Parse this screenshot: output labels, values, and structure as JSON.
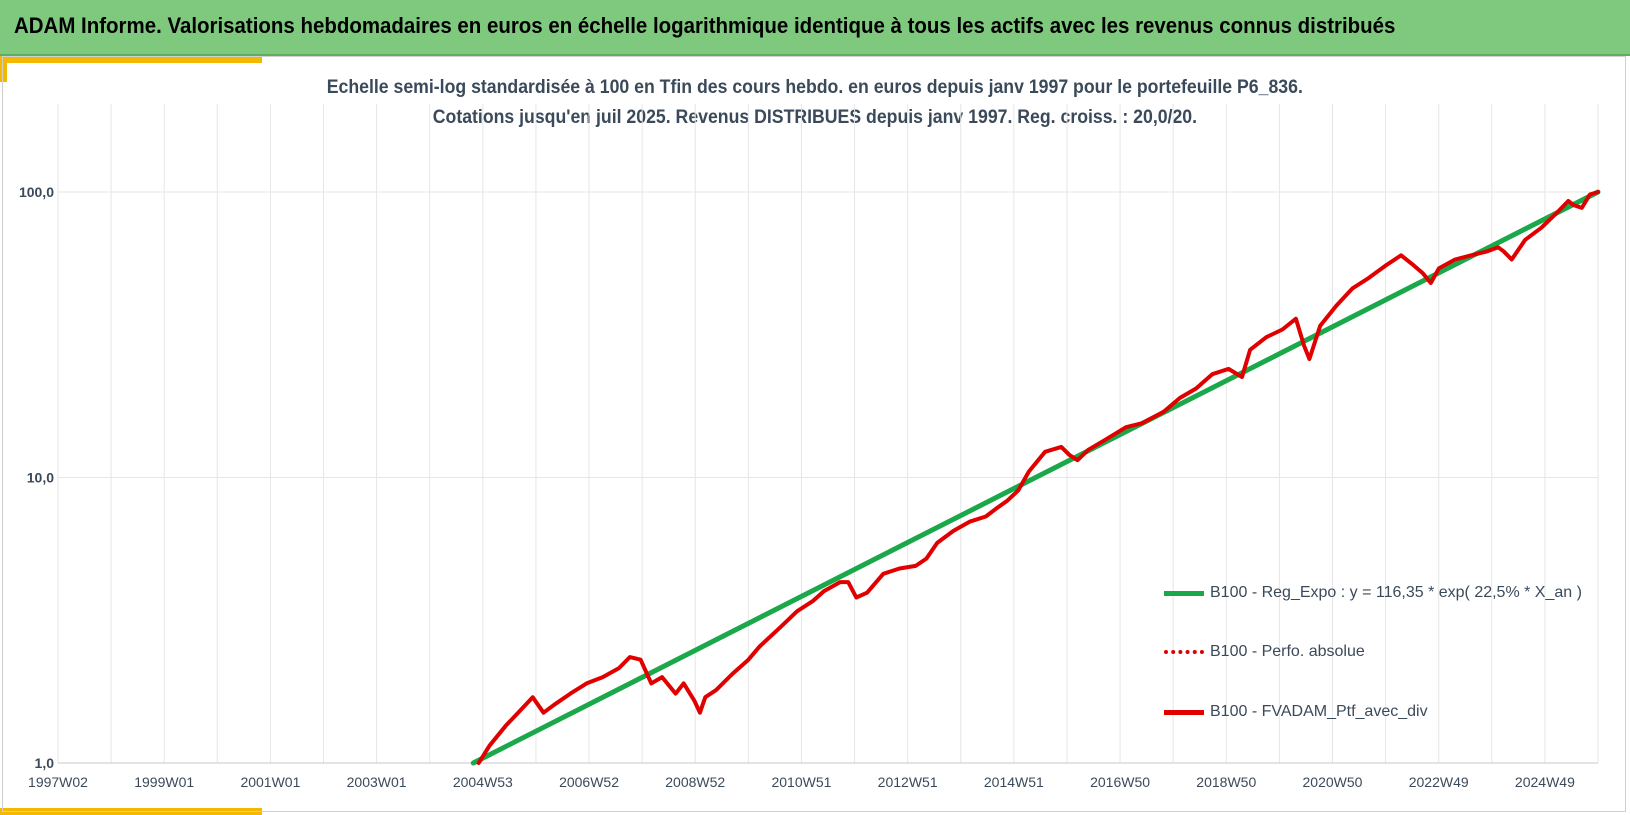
{
  "header": {
    "title": "ADAM Informe. Valorisations hebdomadaires en euros en échelle logarithmique identique à tous les actifs avec les revenus connus distribués"
  },
  "chart_data": {
    "type": "line",
    "title_line1": "Echelle semi-log standardisée  à 100 en Tfin des cours hebdo.  en euros depuis janv 1997 pour le portefeuille P6_836.",
    "title_line2": "Cotations jusqu'en juil 2025. Revenus DISTRIBUES depuis janv 1997. Reg. croiss. : 20,0/20.",
    "y_scale": "log",
    "ylim": [
      1,
      100
    ],
    "y_ticks": [
      "1,0",
      "10,0",
      "100,0"
    ],
    "x_tick_labels": [
      "1997W02",
      "1999W01",
      "2001W01",
      "2003W01",
      "2004W53",
      "2006W52",
      "2008W52",
      "2010W51",
      "2012W51",
      "2014W51",
      "2016W50",
      "2018W50",
      "2020W50",
      "2022W49",
      "2024W49"
    ],
    "xlim": [
      1997.0,
      2025.55
    ],
    "grid": true,
    "legend_position": "right",
    "series": [
      {
        "name": "B100 - Reg_Expo : y = 116,35 * exp( 22,5% *  X_an )",
        "color": "#1aa84a",
        "style": "solid",
        "x": [
          2004.7,
          2025.55
        ],
        "y": [
          1.0,
          100.0
        ]
      },
      {
        "name": "B100 - Perfo. absolue",
        "color": "#e00000",
        "style": "dotted",
        "x": [],
        "y": []
      },
      {
        "name": "B100 - FVADAM_Ptf_avec_div",
        "color": "#e00000",
        "style": "solid",
        "x": [
          2004.8,
          2005.0,
          2005.3,
          2005.6,
          2005.8,
          2006.0,
          2006.2,
          2006.5,
          2006.8,
          2007.1,
          2007.4,
          2007.6,
          2007.8,
          2008.0,
          2008.2,
          2008.45,
          2008.6,
          2008.8,
          2008.9,
          2009.0,
          2009.2,
          2009.5,
          2009.8,
          2010.0,
          2010.4,
          2010.7,
          2011.0,
          2011.2,
          2011.5,
          2011.65,
          2011.8,
          2012.0,
          2012.3,
          2012.6,
          2012.9,
          2013.1,
          2013.3,
          2013.6,
          2013.9,
          2014.2,
          2014.4,
          2014.6,
          2014.8,
          2015.0,
          2015.3,
          2015.6,
          2015.75,
          2015.9,
          2016.1,
          2016.4,
          2016.8,
          2017.1,
          2017.5,
          2017.8,
          2018.1,
          2018.4,
          2018.7,
          2018.95,
          2019.1,
          2019.4,
          2019.7,
          2019.95,
          2020.1,
          2020.2,
          2020.4,
          2020.7,
          2021.0,
          2021.3,
          2021.6,
          2021.9,
          2022.1,
          2022.3,
          2022.45,
          2022.6,
          2022.9,
          2023.2,
          2023.5,
          2023.7,
          2023.8,
          2023.95,
          2024.2,
          2024.5,
          2024.8,
          2025.0,
          2025.1,
          2025.25,
          2025.4,
          2025.55
        ],
        "y": [
          1.0,
          1.15,
          1.35,
          1.55,
          1.7,
          1.5,
          1.6,
          1.75,
          1.9,
          2.0,
          2.15,
          2.35,
          2.3,
          1.9,
          2.0,
          1.75,
          1.9,
          1.65,
          1.5,
          1.7,
          1.8,
          2.05,
          2.3,
          2.55,
          3.0,
          3.4,
          3.7,
          4.0,
          4.3,
          4.3,
          3.8,
          3.95,
          4.6,
          4.8,
          4.9,
          5.2,
          5.9,
          6.5,
          7.0,
          7.3,
          7.8,
          8.3,
          9.0,
          10.5,
          12.3,
          12.8,
          12.0,
          11.5,
          12.5,
          13.5,
          15.0,
          15.5,
          17.0,
          19.0,
          20.5,
          23.0,
          24.0,
          22.5,
          28.0,
          31.0,
          33.0,
          36.0,
          29.0,
          26.0,
          34.0,
          40.0,
          46.0,
          50.0,
          55.0,
          60.0,
          56.0,
          52.0,
          48.0,
          54.0,
          58.0,
          60.0,
          62.0,
          64.0,
          62.0,
          58.0,
          68.0,
          75.0,
          85.0,
          93.0,
          90.0,
          88.0,
          98.0,
          100.0
        ]
      }
    ]
  }
}
